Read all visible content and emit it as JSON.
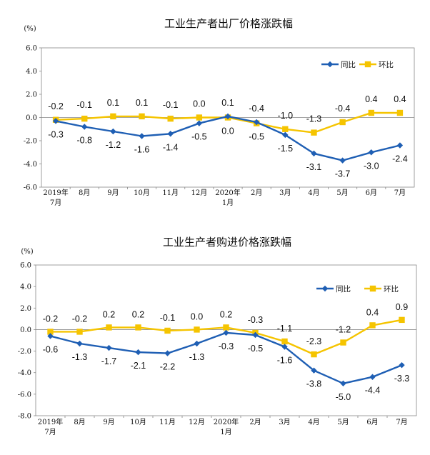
{
  "colors": {
    "yoy": "#1F5FB4",
    "mom": "#F5C400",
    "frame": "#888888"
  },
  "chart_data": [
    {
      "type": "line",
      "title": "工业生产者出厂价格涨跌幅",
      "unit_label": "(%)",
      "ylim": [
        -6.0,
        6.0
      ],
      "yticks": [
        "6.0",
        "4.0",
        "2.0",
        "0.0",
        "-2.0",
        "-4.0",
        "-6.0"
      ],
      "categories": [
        [
          "2019年",
          "7月"
        ],
        [
          "8月"
        ],
        [
          "9月"
        ],
        [
          "10月"
        ],
        [
          "11月"
        ],
        [
          "12月"
        ],
        [
          "2020年",
          "1月"
        ],
        [
          "2月"
        ],
        [
          "3月"
        ],
        [
          "4月"
        ],
        [
          "5月"
        ],
        [
          "6月"
        ],
        [
          "7月"
        ]
      ],
      "legend_position": "top-right",
      "series": [
        {
          "name": "同比",
          "color": "#1F5FB4",
          "marker": "diamond",
          "values": [
            -0.3,
            -0.8,
            -1.2,
            -1.6,
            -1.4,
            -0.5,
            0.1,
            -0.4,
            -1.5,
            -3.1,
            -3.7,
            -3.0,
            -2.4
          ]
        },
        {
          "name": "环比",
          "color": "#F5C400",
          "marker": "square",
          "values": [
            -0.2,
            -0.1,
            0.1,
            0.1,
            -0.1,
            0.0,
            0.0,
            -0.5,
            -1.0,
            -1.3,
            -0.4,
            0.4,
            0.4
          ]
        }
      ],
      "upper_labels": [
        "-0.2",
        "-0.1",
        "0.1",
        "0.1",
        "-0.1",
        "0.0",
        "0.1",
        "-0.4",
        "-1.0",
        "-1.3",
        "-0.4",
        "0.4",
        "0.4"
      ],
      "lower_labels": [
        "-0.3",
        "-0.8",
        "-1.2",
        "-1.6",
        "-1.4",
        "-0.5",
        "0.0",
        "-0.5",
        "-1.5",
        "-3.1",
        "-3.7",
        "-3.0",
        "-2.4"
      ]
    },
    {
      "type": "line",
      "title": "工业生产者购进价格涨跌幅",
      "unit_label": "(%)",
      "ylim": [
        -8.0,
        6.0
      ],
      "yticks": [
        "6.0",
        "4.0",
        "2.0",
        "0.0",
        "-2.0",
        "-4.0",
        "-6.0",
        "-8.0"
      ],
      "categories": [
        [
          "2019年",
          "7月"
        ],
        [
          "8月"
        ],
        [
          "9月"
        ],
        [
          "10月"
        ],
        [
          "11月"
        ],
        [
          "12月"
        ],
        [
          "2020年",
          "1月"
        ],
        [
          "2月"
        ],
        [
          "3月"
        ],
        [
          "4月"
        ],
        [
          "5月"
        ],
        [
          "6月"
        ],
        [
          "7月"
        ]
      ],
      "legend_position": "top-right",
      "series": [
        {
          "name": "同比",
          "color": "#1F5FB4",
          "marker": "diamond",
          "values": [
            -0.6,
            -1.3,
            -1.7,
            -2.1,
            -2.2,
            -1.3,
            -0.3,
            -0.5,
            -1.6,
            -3.8,
            -5.0,
            -4.4,
            -3.3
          ]
        },
        {
          "name": "环比",
          "color": "#F5C400",
          "marker": "square",
          "values": [
            -0.2,
            -0.2,
            0.2,
            0.2,
            -0.1,
            0.0,
            0.2,
            -0.3,
            -1.1,
            -2.3,
            -1.2,
            0.4,
            0.9
          ]
        }
      ],
      "upper_labels": [
        "-0.2",
        "-0.2",
        "0.2",
        "0.2",
        "-0.1",
        "0.0",
        "0.2",
        "-0.3",
        "-1.1",
        "-2.3",
        "-1.2",
        "0.4",
        "0.9"
      ],
      "lower_labels": [
        "-0.6",
        "-1.3",
        "-1.7",
        "-2.1",
        "-2.2",
        "-1.3",
        "-0.3",
        "-0.5",
        "-1.6",
        "-3.8",
        "-5.0",
        "-4.4",
        "-3.3"
      ]
    }
  ]
}
